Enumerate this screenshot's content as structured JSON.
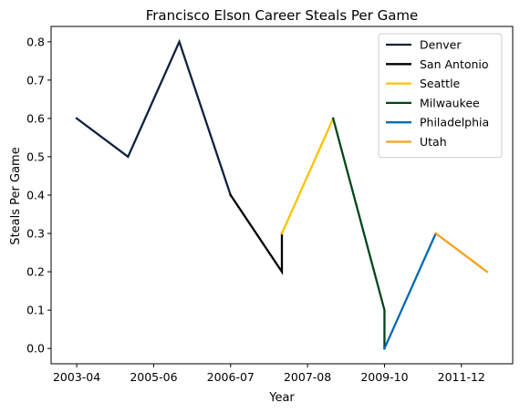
{
  "chart_data": {
    "type": "line",
    "title": "Francisco Elson Career Steals Per Game",
    "xlabel": "Year",
    "ylabel": "Steals Per Game",
    "x_ticks": [
      "2003-04",
      "2005-06",
      "2006-07",
      "2007-08",
      "2009-10",
      "2011-12"
    ],
    "ylim": [
      -0.04,
      0.84
    ],
    "y_ticks": [
      "0.0",
      "0.1",
      "0.2",
      "0.3",
      "0.4",
      "0.5",
      "0.6",
      "0.7",
      "0.8"
    ],
    "grid": false,
    "legend_position": "top-right",
    "series": [
      {
        "name": "Denver",
        "color": "#0e2240",
        "points": [
          [
            0,
            0.6
          ],
          [
            1,
            0.5
          ],
          [
            2,
            0.8
          ],
          [
            3,
            0.4
          ]
        ]
      },
      {
        "name": "San Antonio",
        "color": "#000000",
        "points": [
          [
            3,
            0.4
          ],
          [
            4,
            0.2
          ],
          [
            4,
            0.3
          ]
        ]
      },
      {
        "name": "Seattle",
        "color": "#ffc200",
        "points": [
          [
            4,
            0.3
          ],
          [
            5,
            0.6
          ]
        ]
      },
      {
        "name": "Milwaukee",
        "color": "#00471b",
        "points": [
          [
            5,
            0.6
          ],
          [
            6,
            0.1
          ],
          [
            6,
            0.0
          ]
        ]
      },
      {
        "name": "Philadelphia",
        "color": "#006bb6",
        "points": [
          [
            6,
            0.0
          ],
          [
            7,
            0.3
          ]
        ]
      },
      {
        "name": "Utah",
        "color": "#f9a01b",
        "points": [
          [
            7,
            0.3
          ],
          [
            8,
            0.2
          ]
        ]
      }
    ]
  }
}
